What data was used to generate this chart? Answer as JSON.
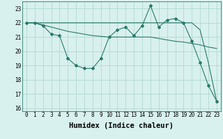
{
  "xlabel": "Humidex (Indice chaleur)",
  "x": [
    0,
    1,
    2,
    3,
    4,
    5,
    6,
    7,
    8,
    9,
    10,
    11,
    12,
    13,
    14,
    15,
    16,
    17,
    18,
    19,
    20,
    21,
    22,
    23
  ],
  "line1": [
    22.0,
    22.0,
    21.8,
    21.2,
    21.1,
    19.5,
    19.0,
    18.8,
    18.8,
    19.5,
    21.0,
    21.5,
    21.7,
    21.1,
    21.8,
    23.2,
    21.7,
    22.2,
    22.3,
    22.0,
    20.7,
    19.2,
    17.6,
    16.5
  ],
  "line2": [
    22.0,
    22.0,
    21.85,
    21.7,
    21.55,
    21.4,
    21.3,
    21.2,
    21.1,
    21.05,
    21.0,
    21.0,
    21.0,
    21.0,
    21.0,
    21.0,
    20.9,
    20.8,
    20.7,
    20.65,
    20.55,
    20.45,
    20.3,
    20.2
  ],
  "line3": [
    22.0,
    22.0,
    22.0,
    22.0,
    22.0,
    22.0,
    22.0,
    22.0,
    22.0,
    22.0,
    22.0,
    22.0,
    22.0,
    22.0,
    22.0,
    22.0,
    22.0,
    22.0,
    22.0,
    22.0,
    22.0,
    21.5,
    19.2,
    16.5
  ],
  "line_color": "#2a7a6a",
  "bg_color": "#d8f0ee",
  "grid_color": "#aad4cc",
  "ylim": [
    15.8,
    23.5
  ],
  "xlim": [
    -0.5,
    23.5
  ],
  "yticks": [
    16,
    17,
    18,
    19,
    20,
    21,
    22,
    23
  ],
  "xticks": [
    0,
    1,
    2,
    3,
    4,
    5,
    6,
    7,
    8,
    9,
    10,
    11,
    12,
    13,
    14,
    15,
    16,
    17,
    18,
    19,
    20,
    21,
    22,
    23
  ],
  "tick_fontsize": 5.5,
  "label_fontsize": 7.5
}
